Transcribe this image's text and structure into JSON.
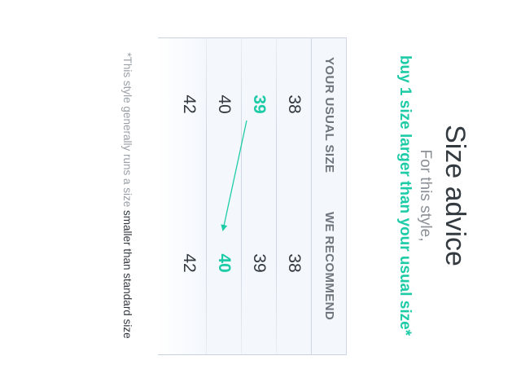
{
  "title": "Size advice",
  "subtitle": "For this style,",
  "advice": "buy 1 size larger than your usual size*",
  "table": {
    "headers": [
      "YOUR USUAL SIZE",
      "WE RECOMMEND"
    ],
    "rows": [
      {
        "usual": "38",
        "recommend": "38",
        "highlight_usual": false,
        "highlight_recommend": false
      },
      {
        "usual": "39",
        "recommend": "39",
        "highlight_usual": true,
        "highlight_recommend": false
      },
      {
        "usual": "40",
        "recommend": "40",
        "highlight_usual": false,
        "highlight_recommend": true
      },
      {
        "usual": "42",
        "recommend": "42",
        "highlight_usual": false,
        "highlight_recommend": false
      }
    ]
  },
  "note": {
    "prefix": "*This style generally runs a size ",
    "emphasis": "smaller than standard size"
  },
  "colors": {
    "accent": "#1ecba7",
    "text": "#333a40",
    "muted": "#8a9096",
    "table_bg": "#f4f8fd"
  }
}
